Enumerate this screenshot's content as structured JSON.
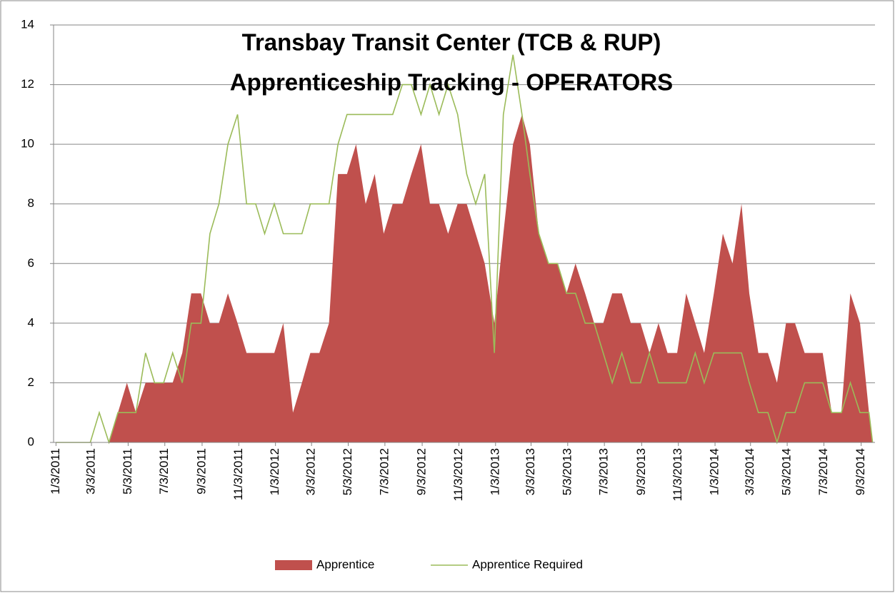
{
  "chart_data": {
    "type": "area_line",
    "title": "Transbay Transit Center (TCB & RUP)",
    "subtitle": "Apprenticeship Tracking - OPERATORS",
    "x": [
      "1/3/2011",
      "1/16/2011",
      "2/1/2011",
      "2/16/2011",
      "3/1/2011",
      "3/16/2011",
      "4/1/2011",
      "4/16/2011",
      "5/1/2011",
      "5/16/2011",
      "6/1/2011",
      "6/16/2011",
      "7/1/2011",
      "7/16/2011",
      "8/1/2011",
      "8/16/2011",
      "9/1/2011",
      "9/16/2011",
      "10/1/2011",
      "10/16/2011",
      "11/1/2011",
      "11/16/2011",
      "12/1/2011",
      "12/16/2011",
      "1/1/2012",
      "1/16/2012",
      "2/1/2012",
      "2/16/2012",
      "3/1/2012",
      "3/16/2012",
      "4/1/2012",
      "4/16/2012",
      "5/1/2012",
      "5/16/2012",
      "6/1/2012",
      "6/16/2012",
      "7/1/2012",
      "7/16/2012",
      "8/1/2012",
      "8/16/2012",
      "9/1/2012",
      "9/16/2012",
      "10/1/2012",
      "10/16/2012",
      "11/1/2012",
      "11/16/2012",
      "12/1/2012",
      "12/16/2012",
      "1/1/2013",
      "1/16/2013",
      "2/1/2013",
      "2/16/2013",
      "3/1/2013",
      "3/16/2013",
      "4/1/2013",
      "4/16/2013",
      "5/1/2013",
      "5/16/2013",
      "6/1/2013",
      "6/16/2013",
      "7/1/2013",
      "7/16/2013",
      "8/1/2013",
      "8/16/2013",
      "9/1/2013",
      "9/16/2013",
      "10/1/2013",
      "10/16/2013",
      "11/1/2013",
      "11/16/2013",
      "12/1/2013",
      "12/16/2013",
      "1/1/2014",
      "1/16/2014",
      "2/1/2014",
      "2/16/2014",
      "3/1/2014",
      "3/16/2014",
      "4/1/2014",
      "4/16/2014",
      "5/1/2014",
      "5/16/2014",
      "6/1/2014",
      "6/16/2014",
      "7/1/2014",
      "7/16/2014",
      "8/1/2014",
      "8/16/2014",
      "9/1/2014",
      "9/16/2014",
      "9/22/2014"
    ],
    "series": [
      {
        "name": "Apprentice",
        "kind": "area",
        "color": "#c0504d",
        "values": [
          0,
          0,
          0,
          0,
          0,
          0,
          0,
          1,
          2,
          1,
          2,
          2,
          2,
          2,
          3,
          5,
          5,
          4,
          4,
          5,
          4,
          3,
          3,
          3,
          3,
          4,
          1,
          2,
          3,
          3,
          4,
          9,
          9,
          10,
          8,
          9,
          7,
          8,
          8,
          9,
          10,
          8,
          8,
          7,
          8,
          8,
          7,
          6,
          4,
          7,
          10,
          11,
          10,
          7,
          6,
          6,
          5,
          6,
          5,
          4,
          4,
          5,
          5,
          4,
          4,
          3,
          4,
          3,
          3,
          5,
          4,
          3,
          5,
          7,
          6,
          8,
          5,
          3,
          3,
          2,
          4,
          4,
          3,
          3,
          3,
          1,
          1,
          5,
          4,
          1,
          0
        ]
      },
      {
        "name": "Apprentice Required",
        "kind": "line",
        "color": "#9bbb59",
        "values": [
          0,
          0,
          0,
          0,
          0,
          1,
          0,
          1,
          1,
          1,
          3,
          2,
          2,
          3,
          2,
          4,
          4,
          7,
          8,
          10,
          11,
          8,
          8,
          7,
          8,
          7,
          7,
          7,
          8,
          8,
          8,
          10,
          11,
          11,
          11,
          11,
          11,
          11,
          12,
          12,
          11,
          12,
          11,
          12,
          11,
          9,
          8,
          9,
          3,
          11,
          13,
          11,
          9,
          7,
          6,
          6,
          5,
          5,
          4,
          4,
          3,
          2,
          3,
          2,
          2,
          3,
          2,
          2,
          2,
          2,
          3,
          2,
          3,
          3,
          3,
          3,
          2,
          1,
          1,
          0,
          1,
          1,
          2,
          2,
          2,
          1,
          1,
          2,
          1,
          1,
          0
        ]
      }
    ],
    "xlim": [
      "12/30/2010",
      "9/26/2014"
    ],
    "xticks": [
      "1/3/2011",
      "3/3/2011",
      "5/3/2011",
      "7/3/2011",
      "9/3/2011",
      "11/3/2011",
      "1/3/2012",
      "3/3/2012",
      "5/3/2012",
      "7/3/2012",
      "9/3/2012",
      "11/3/2012",
      "1/3/2013",
      "3/3/2013",
      "5/3/2013",
      "7/3/2013",
      "9/3/2013",
      "11/3/2013",
      "1/3/2014",
      "3/3/2014",
      "5/3/2014",
      "7/3/2014",
      "9/3/2014"
    ],
    "ylim": [
      0,
      14
    ],
    "yticks": [
      0,
      2,
      4,
      6,
      8,
      10,
      12,
      14
    ],
    "grid": true,
    "legend": "bottom"
  }
}
